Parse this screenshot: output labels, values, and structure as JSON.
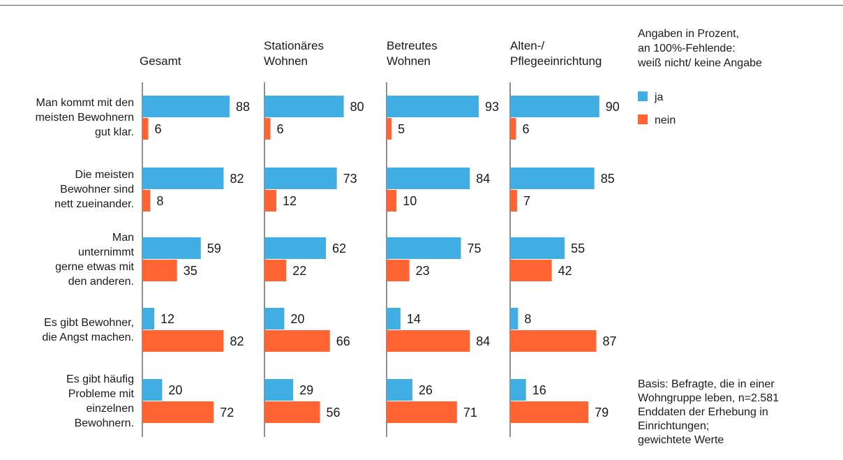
{
  "colors": {
    "ja": "#41aee3",
    "nein": "#ff6432",
    "axis": "#222222",
    "text": "#1a1a1a"
  },
  "legend": {
    "note_lines": [
      "Angaben in Prozent,",
      "an 100%-Fehlende:",
      "weiß nicht/ keine Angabe"
    ],
    "items": [
      {
        "label": "ja",
        "color": "#41aee3"
      },
      {
        "label": "nein",
        "color": "#ff6432"
      }
    ]
  },
  "source_lines": [
    "Basis: Befragte, die in einer",
    "Wohngruppe leben, n=2.581",
    "Enddaten der Erhebung in",
    "Einrichtungen;",
    "gewichtete Werte"
  ],
  "chart_data": {
    "type": "bar",
    "orientation": "horizontal",
    "xlim": [
      0,
      100
    ],
    "grid": false,
    "legend_position": "right",
    "panels": [
      {
        "title_lines": [
          "Gesamt"
        ]
      },
      {
        "title_lines": [
          "Stationäres",
          "Wohnen"
        ]
      },
      {
        "title_lines": [
          "Betreutes",
          "Wohnen"
        ]
      },
      {
        "title_lines": [
          "Alten-/",
          "Pflegeeinrichtung"
        ]
      }
    ],
    "categories": [
      [
        "Man kommt mit den",
        "meisten Bewohnern",
        "gut klar."
      ],
      [
        "Die meisten",
        "Bewohner sind",
        "nett zueinander."
      ],
      [
        "Man",
        "unternimmt",
        "gerne etwas mit",
        "den anderen."
      ],
      [
        "Es gibt Bewohner,",
        "die Angst machen."
      ],
      [
        "Es gibt häufig",
        "Probleme mit",
        "einzelnen",
        "Bewohnern."
      ]
    ],
    "series": [
      {
        "name": "ja",
        "values": [
          [
            88,
            82,
            59,
            12,
            20
          ],
          [
            80,
            73,
            62,
            20,
            29
          ],
          [
            93,
            84,
            75,
            14,
            26
          ],
          [
            90,
            85,
            55,
            8,
            16
          ]
        ]
      },
      {
        "name": "nein",
        "values": [
          [
            6,
            8,
            35,
            82,
            72
          ],
          [
            6,
            12,
            22,
            66,
            56
          ],
          [
            5,
            10,
            23,
            84,
            71
          ],
          [
            6,
            7,
            42,
            87,
            79
          ]
        ]
      }
    ]
  }
}
